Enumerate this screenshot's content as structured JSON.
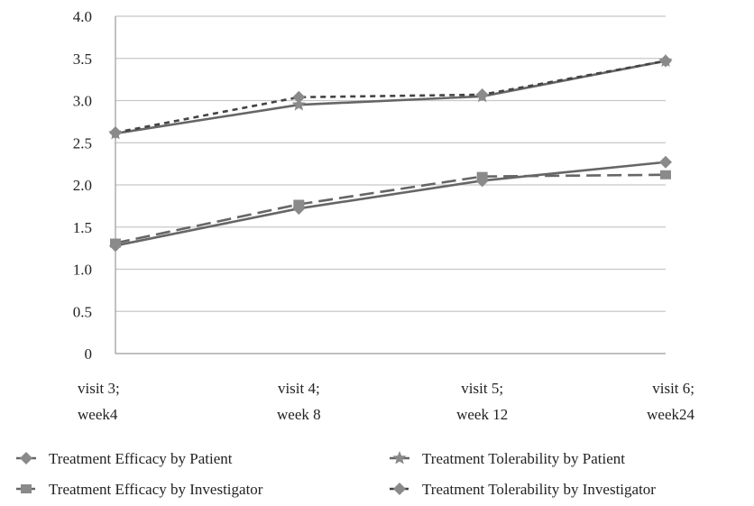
{
  "chart_data": {
    "type": "line",
    "categories": [
      [
        "visit 3;",
        "week4"
      ],
      [
        "visit 4;",
        "week 8"
      ],
      [
        "visit 5;",
        "week 12"
      ],
      [
        "visit 6;",
        "week24"
      ]
    ],
    "ylim": [
      0,
      4.0
    ],
    "yticks": [
      "0",
      "0.5",
      "1.0",
      "1.5",
      "2.0",
      "2.5",
      "3.0",
      "3.5",
      "4.0"
    ],
    "grid": true,
    "legend_position": "bottom",
    "series": [
      {
        "name": "Treatment Efficacy by Patient",
        "values": [
          1.28,
          1.72,
          2.05,
          2.27
        ],
        "color": "#666666",
        "dash": "solid",
        "marker": "diamond"
      },
      {
        "name": "Treatment Efficacy by Investigator",
        "values": [
          1.31,
          1.77,
          2.1,
          2.12
        ],
        "color": "#666666",
        "dash": "long-dash",
        "marker": "square"
      },
      {
        "name": "Treatment Tolerability by Patient",
        "values": [
          2.61,
          2.95,
          3.05,
          3.47
        ],
        "color": "#666666",
        "dash": "solid",
        "marker": "star"
      },
      {
        "name": "Treatment Tolerability by Investigator",
        "values": [
          2.62,
          3.04,
          3.07,
          3.47
        ],
        "color": "#444444",
        "dash": "short-dash",
        "marker": "diamond"
      }
    ]
  }
}
